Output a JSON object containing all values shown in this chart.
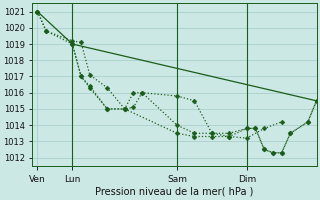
{
  "bg_color": "#cce8e4",
  "grid_color": "#aacfcc",
  "line_color": "#1a5c1a",
  "title": "Pression niveau de la mer( hPa )",
  "ylim": [
    1011.5,
    1021.5
  ],
  "yticks": [
    1012,
    1013,
    1014,
    1015,
    1016,
    1017,
    1018,
    1019,
    1020,
    1021
  ],
  "xtick_labels": [
    "Ven",
    "Lun",
    "Sam",
    "Dim"
  ],
  "xtick_positions": [
    0,
    2,
    8,
    12
  ],
  "xmin": -0.3,
  "xmax": 16,
  "vlines": [
    2,
    8,
    12
  ],
  "series": [
    {
      "x": [
        0,
        2,
        16
      ],
      "y": [
        1021.0,
        1019.0,
        1015.5
      ],
      "dotted": false,
      "linewidth": 0.9
    },
    {
      "x": [
        0,
        0.5,
        2,
        2.5,
        3.0,
        4.0,
        5.0,
        5.5,
        6.0,
        8.0,
        9.0,
        10.0,
        11.0,
        12.0,
        13.0,
        14.0
      ],
      "y": [
        1021.0,
        1019.8,
        1019.2,
        1019.1,
        1017.1,
        1016.3,
        1015.0,
        1015.1,
        1016.0,
        1015.8,
        1015.5,
        1013.5,
        1013.3,
        1013.2,
        1013.8,
        1014.2
      ],
      "dotted": true,
      "linewidth": 0.9
    },
    {
      "x": [
        0,
        0.5,
        2,
        2.5,
        3.0,
        4.0,
        5.0,
        5.5,
        6.0,
        8.0,
        9.0,
        10.0,
        11.0,
        12.0,
        12.5,
        13.0,
        13.5,
        14.0,
        14.5,
        15.5,
        16.0
      ],
      "y": [
        1021.0,
        1019.8,
        1019.0,
        1017.0,
        1016.4,
        1015.0,
        1015.0,
        1016.0,
        1016.0,
        1014.0,
        1013.5,
        1013.5,
        1013.5,
        1013.8,
        1013.8,
        1012.5,
        1012.3,
        1012.3,
        1013.5,
        1014.2,
        1015.5
      ],
      "dotted": true,
      "linewidth": 0.9
    },
    {
      "x": [
        2,
        2.5,
        3.0,
        4.0,
        5.0,
        8.0,
        9.0,
        10.0,
        11.0,
        12.0,
        12.5,
        13.0,
        13.5,
        14.0,
        14.5,
        15.5,
        16.0
      ],
      "y": [
        1019.0,
        1017.0,
        1016.3,
        1015.0,
        1015.0,
        1013.5,
        1013.3,
        1013.3,
        1013.3,
        1013.8,
        1013.8,
        1012.5,
        1012.3,
        1012.3,
        1013.5,
        1014.2,
        1015.5
      ],
      "dotted": true,
      "linewidth": 0.9
    }
  ]
}
